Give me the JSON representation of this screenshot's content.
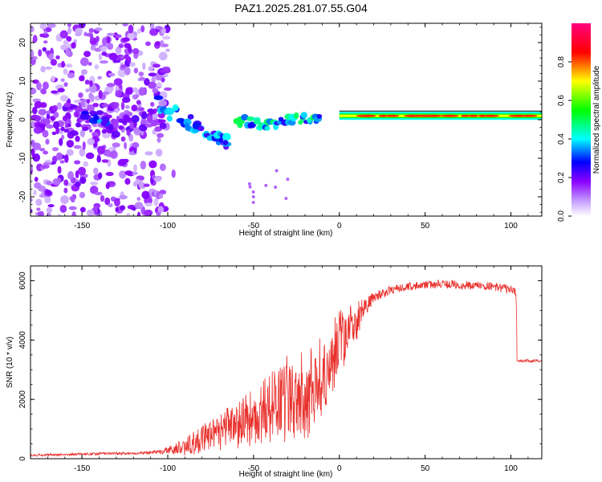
{
  "figure_title": "PAZ1.2025.281.07.55.G04",
  "chart_data": [
    {
      "type": "heatmap",
      "title": "",
      "xlabel": "Height of straight line (km)",
      "ylabel": "Frequency (Hz)",
      "xlim": [
        -180,
        118
      ],
      "ylim": [
        -25,
        25
      ],
      "xticks": [
        -150,
        -100,
        -50,
        0,
        50,
        100
      ],
      "yticks": [
        20,
        10,
        0,
        -10,
        -20
      ],
      "colorbar": {
        "label": "Normalized spectral amplitude",
        "range": [
          0,
          1
        ],
        "ticks": [
          0.0,
          0.2,
          0.4,
          0.6,
          0.8
        ],
        "colors": [
          "#ffffff",
          "#8b00ff",
          "#0000ff",
          "#00ffff",
          "#00ff00",
          "#ffff00",
          "#ff0000",
          "#ff0080"
        ]
      },
      "features": [
        {
          "name": "scattered low-amplitude noise",
          "x_range": [
            -180,
            -100
          ],
          "freq_range": [
            -25,
            25
          ],
          "amplitude": 0.1
        },
        {
          "name": "descending signal trace",
          "x": [
            -105,
            -90,
            -80,
            -70,
            -65
          ],
          "freq": [
            4,
            0,
            -2,
            -4,
            -7
          ],
          "amplitude": 0.35
        },
        {
          "name": "fragmented signal",
          "x": [
            -60,
            -50,
            -40,
            -30,
            -20,
            -10
          ],
          "freq": [
            0,
            -1,
            -1,
            0,
            0,
            1
          ],
          "amplitude": 0.4
        },
        {
          "name": "stable carrier line",
          "x_range": [
            0,
            118
          ],
          "freq": 1,
          "amplitude": 0.9
        }
      ]
    },
    {
      "type": "line",
      "title": "",
      "xlabel": "Height of straight line (km)",
      "ylabel": "SNR (10 * v/v)",
      "xlim": [
        -180,
        118
      ],
      "ylim": [
        0,
        6500
      ],
      "xticks": [
        -150,
        -100,
        -50,
        0,
        50,
        100
      ],
      "yticks": [
        0,
        2000,
        4000,
        6000
      ],
      "color": "#e8302c",
      "series": [
        {
          "name": "SNR",
          "x": [
            -180,
            -160,
            -140,
            -120,
            -110,
            -100,
            -90,
            -80,
            -70,
            -60,
            -50,
            -40,
            -30,
            -20,
            -10,
            0,
            5,
            10,
            15,
            20,
            30,
            40,
            50,
            60,
            70,
            80,
            90,
            100,
            103,
            104,
            110,
            118
          ],
          "y": [
            120,
            140,
            170,
            180,
            200,
            280,
            420,
            700,
            900,
            1100,
            1450,
            1700,
            2000,
            2200,
            2600,
            3900,
            4300,
            4700,
            5100,
            5400,
            5700,
            5800,
            5850,
            5900,
            5850,
            5850,
            5800,
            5700,
            5600,
            3300,
            3300,
            3300
          ],
          "noise_amplitude": [
            40,
            40,
            50,
            40,
            60,
            120,
            350,
            500,
            650,
            800,
            1000,
            1300,
            1500,
            1600,
            1500,
            1100,
            900,
            800,
            400,
            200,
            150,
            150,
            150,
            150,
            150,
            150,
            150,
            150,
            150,
            50,
            50,
            50
          ]
        }
      ]
    }
  ]
}
